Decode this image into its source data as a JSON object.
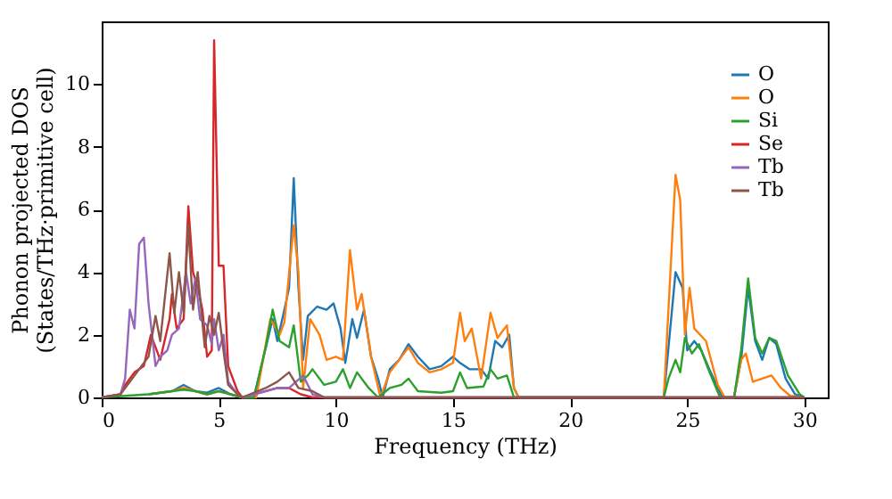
{
  "chart_data": {
    "type": "line",
    "xlabel": "Frequency (THz)",
    "ylabel": "Phonon projected DOS\n(States/THz·primitive cell)",
    "xlim": [
      0,
      31
    ],
    "ylim": [
      0,
      12
    ],
    "xticks": [
      0,
      5,
      10,
      15,
      20,
      25,
      30
    ],
    "yticks": [
      0,
      2,
      4,
      6,
      8,
      10
    ],
    "legend": "top right",
    "grid": false,
    "series": [
      {
        "name": "O",
        "color": "#1f77b4",
        "x": [
          2,
          3,
          3.5,
          4,
          4.5,
          5,
          5.5,
          6,
          6.5,
          7.3,
          7.5,
          7.8,
          8.0,
          8.2,
          8.4,
          8.6,
          8.8,
          9.2,
          9.6,
          9.9,
          10.2,
          10.4,
          10.7,
          10.9,
          11.2,
          11.5,
          11.8,
          12.0,
          12.3,
          12.7,
          13.1,
          13.5,
          14.0,
          14.5,
          15.0,
          15.3,
          15.7,
          16.2,
          16.5,
          16.8,
          17.1,
          17.4,
          17.6,
          17.8,
          24.0,
          24.5,
          24.8,
          25.0,
          25.3,
          25.6,
          26.0,
          26.5,
          27.0,
          27.3,
          27.6,
          27.9,
          28.2,
          28.5,
          28.8,
          29.2,
          29.6,
          30
        ],
        "values": [
          0.1,
          0.2,
          0.4,
          0.2,
          0.15,
          0.3,
          0.1,
          0,
          0,
          2.5,
          1.8,
          2.8,
          3.5,
          7.0,
          3.5,
          1.2,
          2.6,
          2.9,
          2.8,
          3.0,
          2.2,
          1.1,
          2.5,
          1.9,
          2.8,
          1.3,
          0.6,
          0,
          0.9,
          1.2,
          1.7,
          1.3,
          0.9,
          1.0,
          1.3,
          1.1,
          0.9,
          0.9,
          0.6,
          1.8,
          1.6,
          2.0,
          0.3,
          0,
          0,
          4.0,
          3.5,
          1.5,
          1.8,
          1.5,
          0.8,
          0,
          0,
          1.2,
          3.5,
          1.8,
          1.2,
          1.9,
          1.7,
          0.6,
          0.1,
          0
        ]
      },
      {
        "name": "O",
        "color": "#ff7f0e",
        "x": [
          2,
          3,
          3.5,
          4,
          4.5,
          5,
          5.5,
          6,
          6.6,
          7.2,
          7.6,
          7.8,
          8.2,
          8.4,
          8.6,
          8.9,
          9.3,
          9.6,
          10.0,
          10.3,
          10.6,
          10.9,
          11.1,
          11.5,
          11.9,
          12.3,
          12.7,
          13.1,
          13.5,
          14.0,
          14.5,
          15.0,
          15.3,
          15.5,
          15.8,
          16.2,
          16.6,
          16.9,
          17.3,
          17.6,
          17.8,
          24.0,
          24.5,
          24.7,
          24.9,
          25.1,
          25.3,
          25.8,
          26.3,
          26.6,
          27.0,
          27.3,
          27.5,
          27.8,
          28.2,
          28.6,
          29.0,
          29.4,
          30
        ],
        "values": [
          0.1,
          0.2,
          0.3,
          0.2,
          0.1,
          0.2,
          0.1,
          0,
          0,
          2.5,
          2.0,
          2.4,
          5.5,
          4.0,
          0.3,
          2.5,
          2.0,
          1.2,
          1.3,
          1.2,
          4.7,
          2.8,
          3.3,
          1.3,
          0,
          0.8,
          1.2,
          1.6,
          1.1,
          0.8,
          0.9,
          1.1,
          2.7,
          1.8,
          2.2,
          0.6,
          2.7,
          1.9,
          2.3,
          0.3,
          0,
          0,
          7.1,
          6.3,
          2.0,
          3.5,
          2.2,
          1.8,
          0.4,
          0,
          0,
          1.2,
          1.4,
          0.5,
          0.6,
          0.7,
          0.3,
          0.05,
          0
        ]
      },
      {
        "name": "Si",
        "color": "#2ca02c",
        "x": [
          0,
          1,
          2,
          3,
          3.5,
          4,
          4.5,
          5,
          5.5,
          6,
          6.5,
          7.0,
          7.3,
          7.6,
          8.0,
          8.2,
          8.5,
          8.8,
          9.0,
          9.5,
          10.0,
          10.3,
          10.6,
          10.9,
          11.4,
          11.8,
          12.3,
          12.8,
          13.1,
          13.5,
          14.5,
          15.0,
          15.3,
          15.6,
          16.3,
          16.6,
          16.9,
          17.3,
          17.6,
          24.0,
          24.2,
          24.5,
          24.7,
          24.9,
          25.2,
          25.5,
          25.9,
          26.4,
          27.0,
          27.3,
          27.6,
          27.9,
          28.2,
          28.5,
          28.8,
          29.3,
          29.8,
          30
        ],
        "values": [
          0,
          0.05,
          0.1,
          0.2,
          0.25,
          0.2,
          0.1,
          0.2,
          0.1,
          0,
          0,
          1.6,
          2.8,
          1.8,
          1.6,
          2.3,
          0.5,
          0.7,
          0.9,
          0.4,
          0.5,
          0.9,
          0.3,
          0.8,
          0.3,
          0,
          0.3,
          0.4,
          0.6,
          0.2,
          0.15,
          0.2,
          0.8,
          0.3,
          0.35,
          0.9,
          0.6,
          0.7,
          0,
          0,
          0.6,
          1.2,
          0.8,
          1.9,
          1.4,
          1.7,
          0.9,
          0,
          0,
          1.5,
          3.8,
          1.9,
          1.4,
          1.9,
          1.8,
          0.7,
          0.1,
          0
        ]
      },
      {
        "name": "Se",
        "color": "#d62728",
        "x": [
          0,
          0.8,
          1.0,
          1.4,
          1.8,
          2.1,
          2.5,
          2.9,
          3.0,
          3.2,
          3.5,
          3.7,
          3.9,
          4.1,
          4.3,
          4.5,
          4.7,
          4.8,
          5.0,
          5.2,
          5.4,
          5.8,
          6.0,
          7.5,
          8.0,
          8.5,
          9.0,
          30
        ],
        "values": [
          0,
          0.1,
          0.4,
          0.8,
          1.0,
          2.0,
          1.2,
          2.5,
          3.3,
          2.2,
          2.5,
          6.1,
          4.0,
          3.5,
          2.8,
          1.3,
          1.5,
          11.4,
          4.2,
          4.2,
          1.0,
          0.2,
          0,
          0.3,
          0.3,
          0.1,
          0,
          0
        ]
      },
      {
        "name": "Tb",
        "color": "#9467bd",
        "x": [
          0,
          0.8,
          1.0,
          1.2,
          1.4,
          1.6,
          1.8,
          2.0,
          2.3,
          2.5,
          2.8,
          3.0,
          3.3,
          3.6,
          3.8,
          4.0,
          4.2,
          4.5,
          4.7,
          4.8,
          5.0,
          5.2,
          5.4,
          5.8,
          6.0,
          7.0,
          7.5,
          8.0,
          8.6,
          9.0,
          9.5,
          30
        ],
        "values": [
          0,
          0.1,
          0.6,
          2.8,
          2.2,
          4.9,
          5.1,
          3.0,
          1.0,
          1.3,
          1.5,
          2.0,
          2.2,
          4.0,
          3.0,
          3.8,
          2.5,
          2.3,
          1.7,
          2.5,
          1.5,
          2.0,
          0.5,
          0.1,
          0,
          0.2,
          0.3,
          0.3,
          0.7,
          0.1,
          0,
          0
        ]
      },
      {
        "name": "Tb",
        "color": "#8c564b",
        "x": [
          0,
          0.8,
          1.2,
          1.6,
          2.0,
          2.3,
          2.5,
          2.9,
          3.1,
          3.3,
          3.5,
          3.7,
          3.9,
          4.1,
          4.4,
          4.6,
          4.8,
          5.0,
          5.2,
          5.4,
          5.8,
          6.0,
          7.0,
          7.5,
          8.0,
          8.4,
          9.0,
          9.5,
          30
        ],
        "values": [
          0,
          0.1,
          0.5,
          0.9,
          1.3,
          2.6,
          1.8,
          4.6,
          2.7,
          4.0,
          2.7,
          5.5,
          2.8,
          4.0,
          1.6,
          2.6,
          2.0,
          2.7,
          1.5,
          0.4,
          0.1,
          0,
          0.3,
          0.5,
          0.8,
          0.3,
          0.2,
          0,
          0
        ]
      }
    ]
  }
}
